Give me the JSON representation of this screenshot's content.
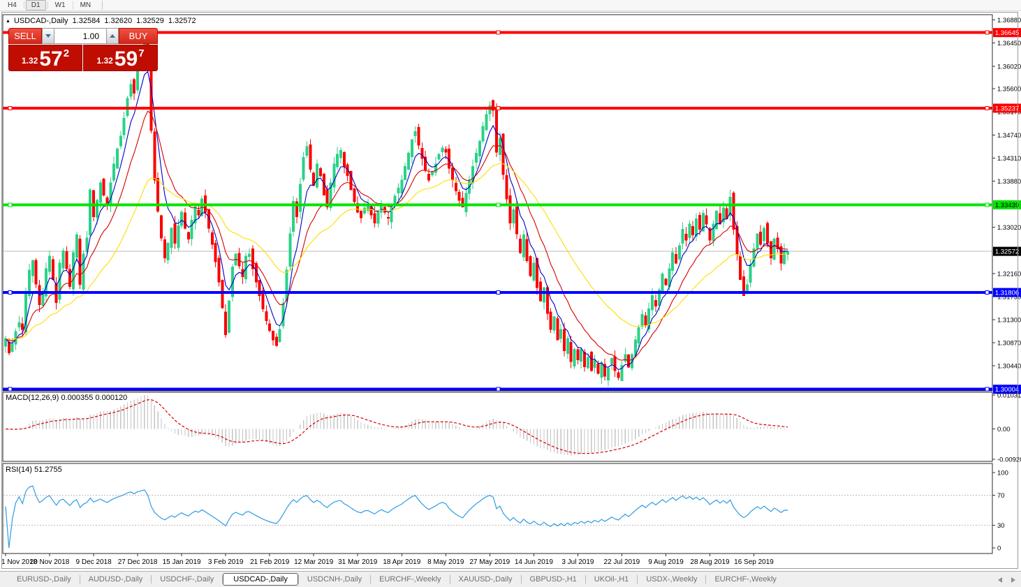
{
  "toolbar": {
    "timeframes": [
      "H4",
      "D1",
      "W1",
      "MN"
    ],
    "active": "D1"
  },
  "header": {
    "collapse_icon": "▲",
    "symbol": "USDCAD-,Daily",
    "open": "1.32584",
    "high": "1.32620",
    "low": "1.32529",
    "close": "1.32572"
  },
  "trade_panel": {
    "sell_label": "SELL",
    "buy_label": "BUY",
    "volume": "1.00",
    "sell_price": {
      "prefix": "1.32",
      "big": "57",
      "sup": "2"
    },
    "buy_price": {
      "prefix": "1.32",
      "big": "59",
      "sup": "7"
    }
  },
  "indicators": {
    "macd": {
      "label": "MACD(12,26,9) 0.000355 0.000120",
      "axis_labels": [
        "0.010311",
        "0.00",
        "-0.009203"
      ]
    },
    "rsi": {
      "label": "RSI(14) 51.2755",
      "axis_labels": [
        "100",
        "70",
        "30",
        "0"
      ]
    }
  },
  "price_axis": {
    "regular_labels": [
      "1.36880",
      "1.36450",
      "1.36020",
      "1.35600",
      "1.35170",
      "1.34740",
      "1.34310",
      "1.33880",
      "1.33020",
      "1.32160",
      "1.31730",
      "1.31300",
      "1.30870",
      "1.30440"
    ],
    "current_price_label": "1.32572"
  },
  "date_axis": {
    "labels": [
      "1 Nov 2018",
      "20 Nov 2018",
      "9 Dec 2018",
      "27 Dec 2018",
      "15 Jan 2019",
      "3 Feb 2019",
      "21 Feb 2019",
      "12 Mar 2019",
      "31 Mar 2019",
      "18 Apr 2019",
      "8 May 2019",
      "27 May 2019",
      "14 Jun 2019",
      "3 Jul 2019",
      "22 Jul 2019",
      "9 Aug 2019",
      "28 Aug 2019",
      "16 Sep 2019"
    ]
  },
  "tabs": {
    "items": [
      "EURUSD-,Daily",
      "AUDUSD-,Daily",
      "USDCHF-,Daily",
      "USDCAD-,Daily",
      "USDCNH-,Daily",
      "EURCHF-,Weekly",
      "XAUUSD-,Daily",
      "GBPUSD-,H1",
      "UKOil-,H1",
      "USDX-,Weekly",
      "EURCHF-,Weekly"
    ],
    "active_index": 3
  },
  "chart_data": {
    "type": "candlestick",
    "symbol": "USDCAD",
    "timeframe": "Daily",
    "displayed_ohlc": {
      "open": 1.32584,
      "high": 1.3262,
      "low": 1.32529,
      "close": 1.32572
    },
    "current_price": 1.32572,
    "y_axis": {
      "min": 1.298,
      "max": 1.3698
    },
    "horizontal_lines": [
      {
        "price": 1.36645,
        "label": "1.36645",
        "color": "#ff0000",
        "text_color": "#ffffff"
      },
      {
        "price": 1.35237,
        "label": "1.35237",
        "color": "#ff0000",
        "text_color": "#ffffff"
      },
      {
        "price": 1.33439,
        "label": "1.33439",
        "color": "#00e400",
        "text_color": "#000000"
      },
      {
        "price": 1.31806,
        "label": "1.31806",
        "color": "#0000ff",
        "text_color": "#ffffff"
      },
      {
        "price": 1.30004,
        "label": "1.30004",
        "color": "#0000ff",
        "text_color": "#ffffff"
      }
    ],
    "bull_color": "#29d287",
    "bear_color": "#fa0000",
    "moving_averages": [
      {
        "period": 6,
        "color": "#0000c8"
      },
      {
        "period": 14,
        "color": "#d60000"
      },
      {
        "period": 35,
        "color": "#ffdd00"
      }
    ],
    "macd": {
      "fast": 12,
      "slow": 26,
      "signal_period": 9,
      "current_value": 0.000355,
      "current_signal": 0.00012,
      "scale_max": 0.010311,
      "scale_min": -0.009203,
      "histogram_color": "#c4c4c4",
      "signal_color": "#d60000"
    },
    "rsi": {
      "period": 14,
      "current_value": 51.2755,
      "levels": [
        70,
        30
      ],
      "color": "#2e9be5"
    },
    "date_tick_step_days": 13,
    "daily_closes": [
      1.3095,
      1.3068,
      1.3085,
      1.3108,
      1.3125,
      1.3112,
      1.3178,
      1.3222,
      1.324,
      1.3196,
      1.3158,
      1.3182,
      1.3225,
      1.3248,
      1.3205,
      1.3162,
      1.3235,
      1.3258,
      1.3225,
      1.3192,
      1.3255,
      1.3288,
      1.3196,
      1.3252,
      1.3282,
      1.3372,
      1.3322,
      1.3352,
      1.3385,
      1.3362,
      1.3345,
      1.3385,
      1.342,
      1.3448,
      1.3472,
      1.3505,
      1.3542,
      1.3568,
      1.3552,
      1.3598,
      1.3622,
      1.3648,
      1.3605,
      1.3482,
      1.339,
      1.3332,
      1.3282,
      1.3245,
      1.3272,
      1.33,
      1.3272,
      1.3305,
      1.333,
      1.33,
      1.328,
      1.3315,
      1.334,
      1.3325,
      1.3355,
      1.333,
      1.33,
      1.327,
      1.3238,
      1.32,
      1.3152,
      1.3102,
      1.3165,
      1.3228,
      1.3252,
      1.323,
      1.321,
      1.3248,
      1.3252,
      1.3225,
      1.32,
      1.3175,
      1.315,
      1.3128,
      1.311,
      1.3092,
      1.3082,
      1.3112,
      1.316,
      1.3222,
      1.329,
      1.335,
      1.3322,
      1.3382,
      1.3432,
      1.3452,
      1.341,
      1.338,
      1.342,
      1.3398,
      1.3362,
      1.334,
      1.3385,
      1.342,
      1.3438,
      1.3445,
      1.3415,
      1.3398,
      1.3372,
      1.335,
      1.333,
      1.332,
      1.3338,
      1.3342,
      1.3325,
      1.331,
      1.333,
      1.3345,
      1.333,
      1.332,
      1.3342,
      1.336,
      1.3375,
      1.339,
      1.3415,
      1.344,
      1.3465,
      1.348,
      1.3455,
      1.343,
      1.3408,
      1.339,
      1.3405,
      1.342,
      1.3438,
      1.345,
      1.3442,
      1.3412,
      1.339,
      1.337,
      1.3352,
      1.334,
      1.3365,
      1.339,
      1.3415,
      1.344,
      1.3462,
      1.349,
      1.3512,
      1.3528,
      1.352,
      1.3442,
      1.3468,
      1.34,
      1.3355,
      1.331,
      1.3335,
      1.329,
      1.3255,
      1.3288,
      1.324,
      1.3212,
      1.3235,
      1.319,
      1.3165,
      1.319,
      1.3142,
      1.3112,
      1.3135,
      1.3092,
      1.3112,
      1.3072,
      1.3095,
      1.3052,
      1.3075,
      1.3055,
      1.3075,
      1.3042,
      1.306,
      1.3035,
      1.3055,
      1.303,
      1.305,
      1.3025,
      1.304,
      1.3058,
      1.3035,
      1.3022,
      1.3045,
      1.3065,
      1.3042,
      1.3065,
      1.3092,
      1.3115,
      1.314,
      1.312,
      1.315,
      1.3175,
      1.3155,
      1.3185,
      1.3215,
      1.3195,
      1.3225,
      1.3255,
      1.3235,
      1.3268,
      1.3298,
      1.3278,
      1.3308,
      1.3288,
      1.3318,
      1.3298,
      1.3328,
      1.3308,
      1.3278,
      1.3308,
      1.3332,
      1.3308,
      1.3338,
      1.3318,
      1.3358,
      1.3298,
      1.3252,
      1.3205,
      1.3175,
      1.3195,
      1.3232,
      1.3262,
      1.329,
      1.327,
      1.33,
      1.3272,
      1.3245,
      1.328,
      1.3262,
      1.3235,
      1.3258,
      1.3257
    ]
  }
}
